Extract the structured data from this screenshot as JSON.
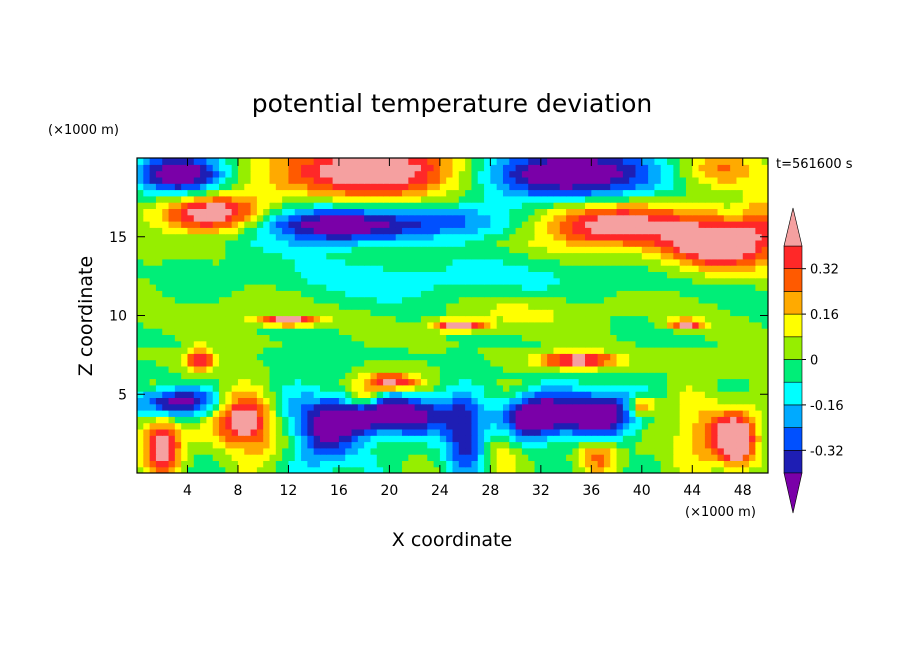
{
  "chart_data": {
    "type": "heatmap",
    "title": "potential temperature deviation",
    "xlabel": "X coordinate",
    "ylabel": "Z coordinate",
    "x_unit": "(×1000 m)",
    "y_unit": "(×1000 m)",
    "time_label": "t=561600 s",
    "xlim": [
      0,
      50
    ],
    "ylim": [
      0,
      20
    ],
    "x_ticks": [
      4,
      8,
      12,
      16,
      20,
      24,
      28,
      32,
      36,
      40,
      44,
      48
    ],
    "y_ticks": [
      5,
      10,
      15
    ],
    "colorbar": {
      "levels": [
        -0.4,
        -0.32,
        -0.24,
        -0.16,
        -0.08,
        0,
        0.08,
        0.16,
        0.24,
        0.32,
        0.4
      ],
      "labels": [
        "0.32",
        "0.16",
        "0",
        "-0.16",
        "-0.32"
      ],
      "label_values": [
        0.32,
        0.16,
        0,
        -0.16,
        -0.32
      ],
      "colors": [
        "#7a00a8",
        "#1e1eb4",
        "#0050ff",
        "#00aaff",
        "#00ffff",
        "#00ee78",
        "#96ee00",
        "#ffff00",
        "#ffaa00",
        "#ff5a00",
        "#ff2828",
        "#f5a0a0"
      ],
      "extend": "both"
    },
    "grid": false
  }
}
